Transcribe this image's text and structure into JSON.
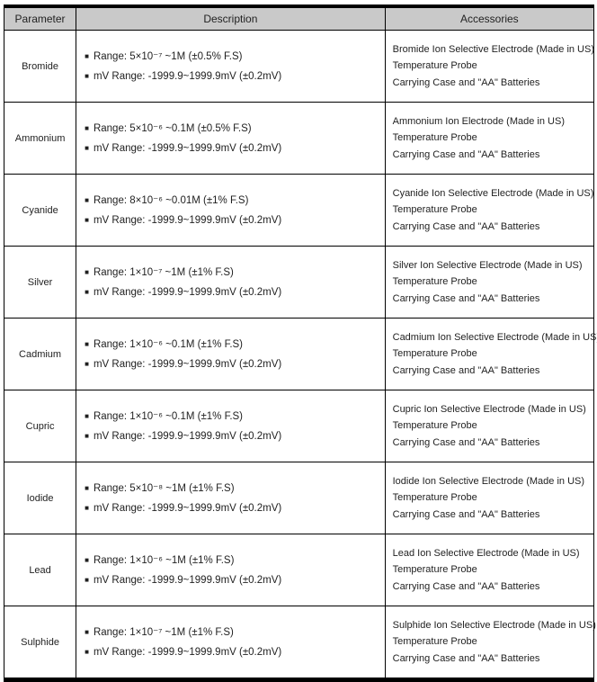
{
  "colors": {
    "header_background": "#c9c9c9",
    "border": "#000000",
    "text": "#1f1f1f"
  },
  "icons": {
    "bullet": "■"
  },
  "table": {
    "headers": [
      "Parameter",
      "Description",
      "Accessories"
    ],
    "rows": [
      {
        "parameter": "Bromide",
        "range": "Range: 5×10⁻⁷ ~1M (±0.5% F.S)",
        "mv_range": "mV Range: -1999.9~1999.9mV (±0.2mV)",
        "accessories": [
          "Bromide Ion Selective Electrode (Made in US)",
          "Temperature Probe",
          "Carrying Case and \"AA\" Batteries"
        ]
      },
      {
        "parameter": "Ammonium",
        "range": "Range: 5×10⁻⁶ ~0.1M (±0.5% F.S)",
        "mv_range": "mV Range: -1999.9~1999.9mV (±0.2mV)",
        "accessories": [
          "Ammonium Ion Electrode (Made in US)",
          "Temperature Probe",
          "Carrying Case and \"AA\" Batteries"
        ]
      },
      {
        "parameter": "Cyanide",
        "range": "Range: 8×10⁻⁶ ~0.01M (±1% F.S)",
        "mv_range": "mV Range: -1999.9~1999.9mV (±0.2mV)",
        "accessories": [
          "Cyanide Ion Selective Electrode (Made in US)",
          "Temperature Probe",
          "Carrying Case and \"AA\" Batteries"
        ]
      },
      {
        "parameter": "Silver",
        "range": "Range: 1×10⁻⁷ ~1M (±1% F.S)",
        "mv_range": "mV Range: -1999.9~1999.9mV (±0.2mV)",
        "accessories": [
          "Silver Ion Selective Electrode (Made in US)",
          "Temperature Probe",
          "Carrying Case and \"AA\" Batteries"
        ]
      },
      {
        "parameter": "Cadmium",
        "range": "Range: 1×10⁻⁶ ~0.1M (±1% F.S)",
        "mv_range": "mV Range: -1999.9~1999.9mV (±0.2mV)",
        "accessories": [
          "Cadmium Ion Selective Electrode (Made in US)",
          "Temperature Probe",
          "Carrying Case and \"AA\" Batteries"
        ]
      },
      {
        "parameter": "Cupric",
        "range": "Range: 1×10⁻⁶ ~0.1M (±1% F.S)",
        "mv_range": "mV Range: -1999.9~1999.9mV (±0.2mV)",
        "accessories": [
          "Cupric Ion Selective Electrode (Made in US)",
          "Temperature Probe",
          "Carrying Case and \"AA\" Batteries"
        ]
      },
      {
        "parameter": "Iodide",
        "range": "Range: 5×10⁻⁸ ~1M (±1% F.S)",
        "mv_range": "mV Range: -1999.9~1999.9mV (±0.2mV)",
        "accessories": [
          "Iodide Ion Selective Electrode (Made in US)",
          "Temperature Probe",
          "Carrying Case and \"AA\" Batteries"
        ]
      },
      {
        "parameter": "Lead",
        "range": "Range: 1×10⁻⁶ ~1M (±1% F.S)",
        "mv_range": "mV Range: -1999.9~1999.9mV (±0.2mV)",
        "accessories": [
          "Lead Ion Selective Electrode (Made in US)",
          "Temperature Probe",
          "Carrying Case and \"AA\" Batteries"
        ]
      },
      {
        "parameter": "Sulphide",
        "range": "Range: 1×10⁻⁷ ~1M (±1% F.S)",
        "mv_range": "mV Range: -1999.9~1999.9mV (±0.2mV)",
        "accessories": [
          "Sulphide Ion Selective Electrode (Made in US)",
          "Temperature Probe",
          "Carrying Case and \"AA\" Batteries"
        ]
      }
    ]
  }
}
